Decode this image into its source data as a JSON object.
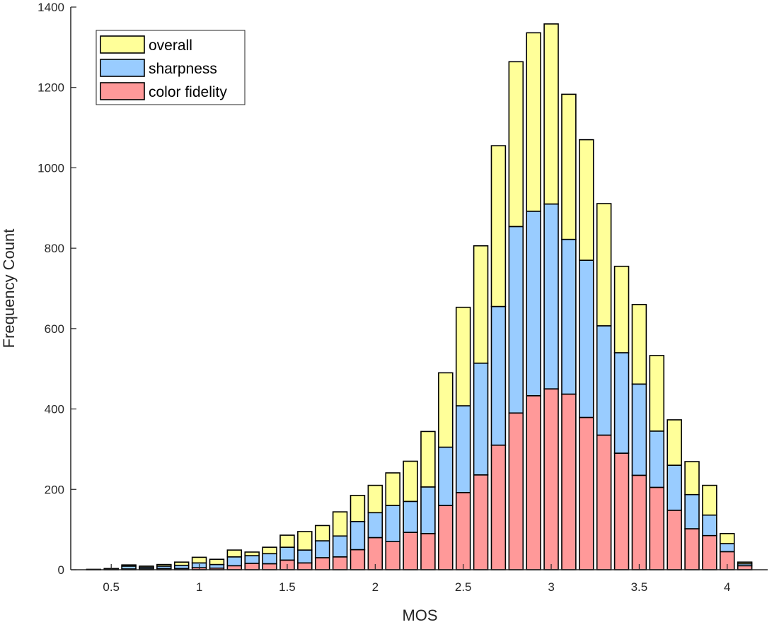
{
  "chart_data": {
    "type": "bar",
    "stacked": true,
    "title": "",
    "xlabel": "MOS",
    "ylabel": "Frequency Count",
    "xlim": [
      0.27,
      4.23
    ],
    "ylim": [
      0,
      1400
    ],
    "xticks": [
      0.5,
      1,
      1.5,
      2,
      2.5,
      3,
      3.5,
      4
    ],
    "xtick_labels": [
      "0.5",
      "1",
      "1.5",
      "2",
      "2.5",
      "3",
      "3.5",
      "4"
    ],
    "yticks": [
      0,
      200,
      400,
      600,
      800,
      1000,
      1200,
      1400
    ],
    "ytick_labels": [
      "0",
      "200",
      "400",
      "600",
      "800",
      "1000",
      "1200",
      "1400"
    ],
    "grid": false,
    "legend_position": "top-left",
    "x": [
      0.4,
      0.5,
      0.6,
      0.7,
      0.8,
      0.9,
      1.0,
      1.1,
      1.2,
      1.3,
      1.4,
      1.5,
      1.6,
      1.7,
      1.8,
      1.9,
      2.0,
      2.1,
      2.2,
      2.3,
      2.4,
      2.5,
      2.6,
      2.7,
      2.8,
      2.9,
      3.0,
      3.1,
      3.2,
      3.3,
      3.4,
      3.5,
      3.6,
      3.7,
      3.8,
      3.9,
      4.0,
      4.1
    ],
    "series": [
      {
        "name": "color fidelity",
        "color": "#ff9999",
        "values": [
          0,
          0,
          2,
          2,
          3,
          3,
          5,
          4,
          10,
          16,
          15,
          24,
          17,
          30,
          32,
          50,
          80,
          70,
          93,
          90,
          160,
          192,
          236,
          310,
          390,
          433,
          450,
          437,
          379,
          335,
          290,
          235,
          205,
          148,
          102,
          85,
          45,
          10
        ]
      },
      {
        "name": "sharpness",
        "color": "#99ccff",
        "values": [
          1,
          2,
          7,
          4,
          6,
          8,
          12,
          9,
          22,
          19,
          25,
          32,
          32,
          42,
          52,
          70,
          62,
          90,
          77,
          116,
          145,
          216,
          278,
          345,
          464,
          459,
          460,
          385,
          391,
          272,
          250,
          227,
          140,
          112,
          85,
          51,
          20,
          5
        ]
      },
      {
        "name": "overall",
        "color": "#ffff99",
        "values": [
          0,
          1,
          3,
          3,
          4,
          8,
          14,
          13,
          17,
          9,
          16,
          30,
          46,
          38,
          60,
          65,
          68,
          81,
          100,
          138,
          185,
          245,
          292,
          400,
          410,
          444,
          448,
          361,
          300,
          304,
          215,
          198,
          188,
          113,
          82,
          74,
          25,
          4
        ]
      }
    ],
    "legend": [
      {
        "label": "overall",
        "color": "#ffff99"
      },
      {
        "label": "sharpness",
        "color": "#99ccff"
      },
      {
        "label": "color fidelity",
        "color": "#ff9999"
      }
    ]
  }
}
